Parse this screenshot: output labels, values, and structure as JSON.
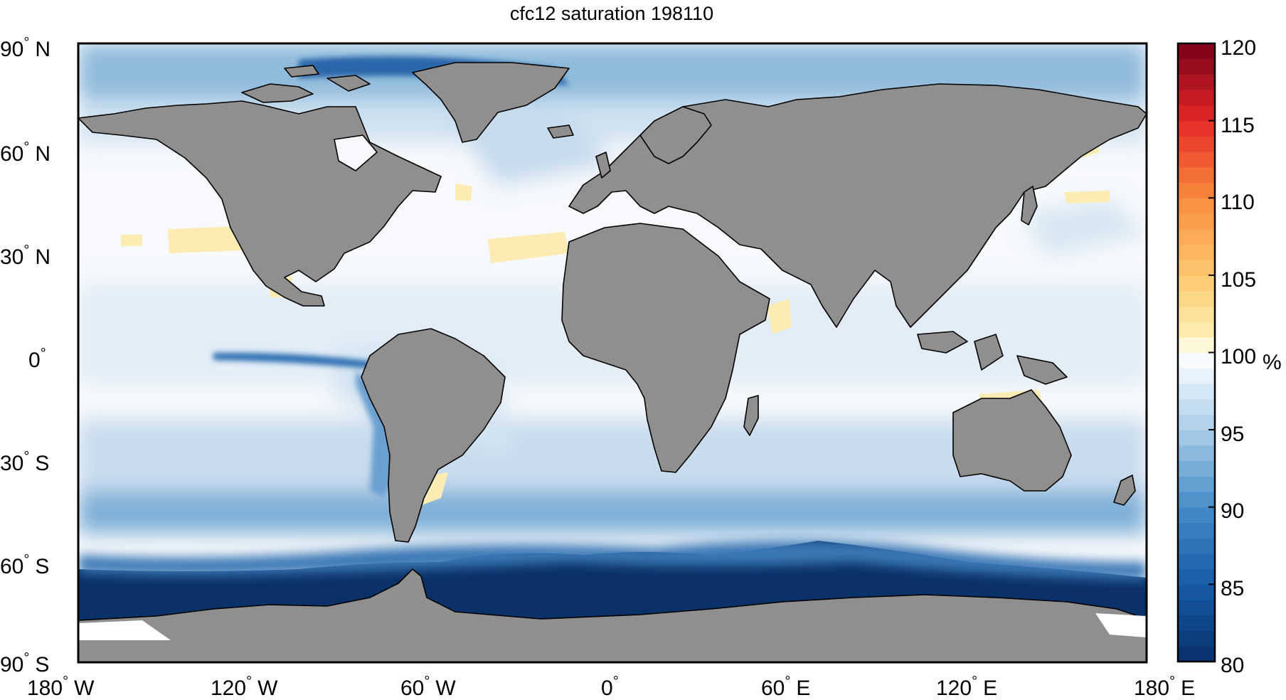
{
  "figure": {
    "title": "cfc12 saturation 198110",
    "colorbar_unit": "%",
    "colorbar_ticks": [
      "120",
      "115",
      "110",
      "105",
      "100",
      "95",
      "90",
      "85",
      "80"
    ],
    "lat_labels": [
      {
        "deg": "90",
        "hemi": "N"
      },
      {
        "deg": "60",
        "hemi": "N"
      },
      {
        "deg": "30",
        "hemi": "N"
      },
      {
        "deg": "0",
        "hemi": ""
      },
      {
        "deg": "30",
        "hemi": "S"
      },
      {
        "deg": "60",
        "hemi": "S"
      },
      {
        "deg": "90",
        "hemi": "S"
      }
    ],
    "lon_labels": [
      {
        "deg": "180",
        "hemi": "W"
      },
      {
        "deg": "120",
        "hemi": "W"
      },
      {
        "deg": "60",
        "hemi": "W"
      },
      {
        "deg": "0",
        "hemi": ""
      },
      {
        "deg": "60",
        "hemi": "E"
      },
      {
        "deg": "120",
        "hemi": "E"
      },
      {
        "deg": "180",
        "hemi": "E"
      }
    ],
    "colors": {
      "land": "#8f8f8f",
      "ocean_saturated": "#f7f9fc",
      "deep_undersaturated": "#0a3168",
      "supersaturated": "#fcecb4"
    },
    "colormap": {
      "min": 80,
      "max": 120,
      "center": 100
    }
  }
}
